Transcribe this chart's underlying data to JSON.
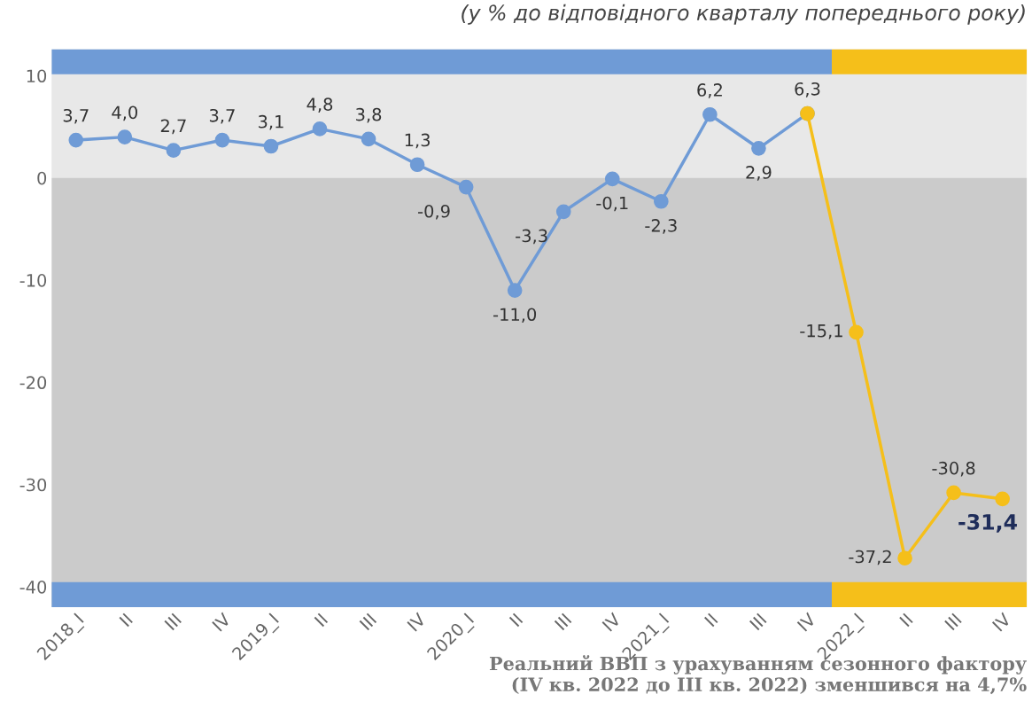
{
  "chart_data": {
    "type": "line",
    "title": "(у % до відповідного кварталу попереднього року)",
    "categories": [
      "2018_I",
      "II",
      "III",
      "IV",
      "2019_I",
      "II",
      "III",
      "IV",
      "2020_I",
      "II",
      "III",
      "IV",
      "2021_I",
      "II",
      "III",
      "IV",
      "2022_I",
      "II",
      "III",
      "IV"
    ],
    "series": [
      {
        "color": "#6f9bd6",
        "values": [
          3.7,
          4.0,
          2.7,
          3.7,
          3.1,
          4.8,
          3.8,
          1.3,
          -0.9,
          -11.0,
          -3.3,
          -0.1,
          -2.3,
          6.2,
          2.9,
          6.3,
          null,
          null,
          null,
          null
        ],
        "value_labels": [
          "3,7",
          "4,0",
          "2,7",
          "3,7",
          "3,1",
          "4,8",
          "3,8",
          "1,3",
          "-0,9",
          "-11,0",
          "-3,3",
          "-0,1",
          "-2,3",
          "6,2",
          "2,9",
          "6,3",
          null,
          null,
          null,
          null
        ]
      },
      {
        "color": "#f5bf1a",
        "values": [
          null,
          null,
          null,
          null,
          null,
          null,
          null,
          null,
          null,
          null,
          null,
          null,
          null,
          null,
          null,
          6.3,
          -15.1,
          -37.2,
          -30.8,
          -31.4
        ],
        "value_labels": [
          null,
          null,
          null,
          null,
          null,
          null,
          null,
          null,
          null,
          null,
          null,
          null,
          null,
          null,
          null,
          null,
          "-15,1",
          "-37,2",
          "-30,8",
          "-31,4"
        ]
      }
    ],
    "ylim": [
      -42,
      12.6
    ],
    "yticks": [
      10,
      0,
      -10,
      -20,
      -30,
      -40
    ],
    "bands": [
      {
        "axis": "y",
        "from": -42,
        "to": 0,
        "color": "#cbcbcb"
      }
    ],
    "marker": "circle",
    "line_style": "solid",
    "grid": false,
    "annotations": [
      "Реальний ВВП з урахуванням сезонного фактору\n(IV кв. 2022 до III кв. 2022) зменшився на 4,7%"
    ]
  }
}
